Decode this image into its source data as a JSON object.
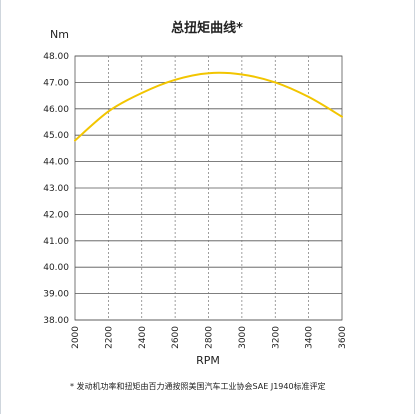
{
  "chart_data": {
    "type": "line",
    "title": "总扭矩曲线*",
    "ylabel": "Nm",
    "xlabel": "RPM",
    "x": [
      2000,
      2200,
      2400,
      2600,
      2800,
      3000,
      3200,
      3400,
      3600
    ],
    "series": [
      {
        "values": [
          44.8,
          45.9,
          46.6,
          47.1,
          47.35,
          47.3,
          47.0,
          46.45,
          45.7
        ]
      }
    ],
    "xlim": [
      2000,
      3600
    ],
    "ylim": [
      38.0,
      48.0
    ],
    "x_ticks": [
      "2000",
      "2200",
      "2400",
      "2600",
      "2800",
      "3000",
      "3200",
      "3400",
      "3600"
    ],
    "y_ticks": [
      "48.00",
      "47.00",
      "46.00",
      "45.00",
      "44.00",
      "43.00",
      "42.00",
      "41.00",
      "40.00",
      "39.00",
      "38.00"
    ],
    "grid": true,
    "line_color": "#f2c500"
  },
  "footnote": "* 发动机功率和扭矩由百力通按照美国汽车工业协会SAE J1940标准评定"
}
